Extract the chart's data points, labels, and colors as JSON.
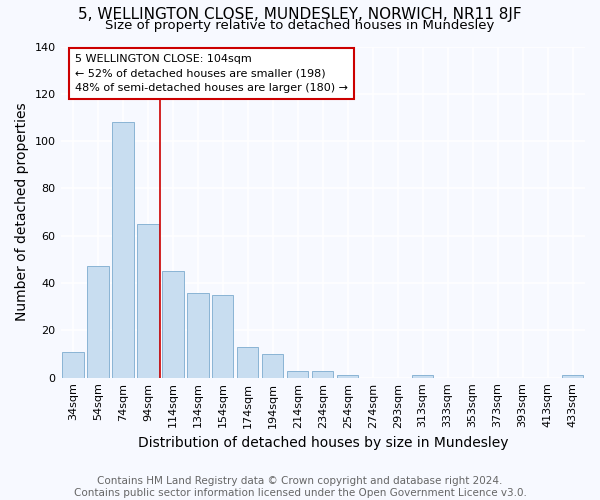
{
  "title": "5, WELLINGTON CLOSE, MUNDESLEY, NORWICH, NR11 8JF",
  "subtitle": "Size of property relative to detached houses in Mundesley",
  "xlabel": "Distribution of detached houses by size in Mundesley",
  "ylabel": "Number of detached properties",
  "footer_line1": "Contains HM Land Registry data © Crown copyright and database right 2024.",
  "footer_line2": "Contains public sector information licensed under the Open Government Licence v3.0.",
  "categories": [
    "34sqm",
    "54sqm",
    "74sqm",
    "94sqm",
    "114sqm",
    "134sqm",
    "154sqm",
    "174sqm",
    "194sqm",
    "214sqm",
    "234sqm",
    "254sqm",
    "274sqm",
    "293sqm",
    "313sqm",
    "333sqm",
    "353sqm",
    "373sqm",
    "393sqm",
    "413sqm",
    "433sqm"
  ],
  "values": [
    11,
    47,
    108,
    65,
    45,
    36,
    35,
    13,
    10,
    3,
    3,
    1,
    0,
    0,
    1,
    0,
    0,
    0,
    0,
    0,
    1
  ],
  "bar_color": "#c8ddf0",
  "bar_edge_color": "#8ab4d4",
  "background_color": "#f7f9ff",
  "grid_color": "#ffffff",
  "ylim": [
    0,
    140
  ],
  "yticks": [
    0,
    20,
    40,
    60,
    80,
    100,
    120,
    140
  ],
  "red_line_color": "#cc0000",
  "red_line_x": 3.5,
  "property_line_label": "5 WELLINGTON CLOSE: 104sqm",
  "annotation_line1": "← 52% of detached houses are smaller (198)",
  "annotation_line2": "48% of semi-detached houses are larger (180) →",
  "annotation_box_facecolor": "#ffffff",
  "annotation_box_edgecolor": "#cc0000",
  "title_fontsize": 11,
  "subtitle_fontsize": 9.5,
  "axis_label_fontsize": 10,
  "tick_fontsize": 8,
  "annotation_fontsize": 8,
  "footer_fontsize": 7.5,
  "bar_width": 0.85
}
